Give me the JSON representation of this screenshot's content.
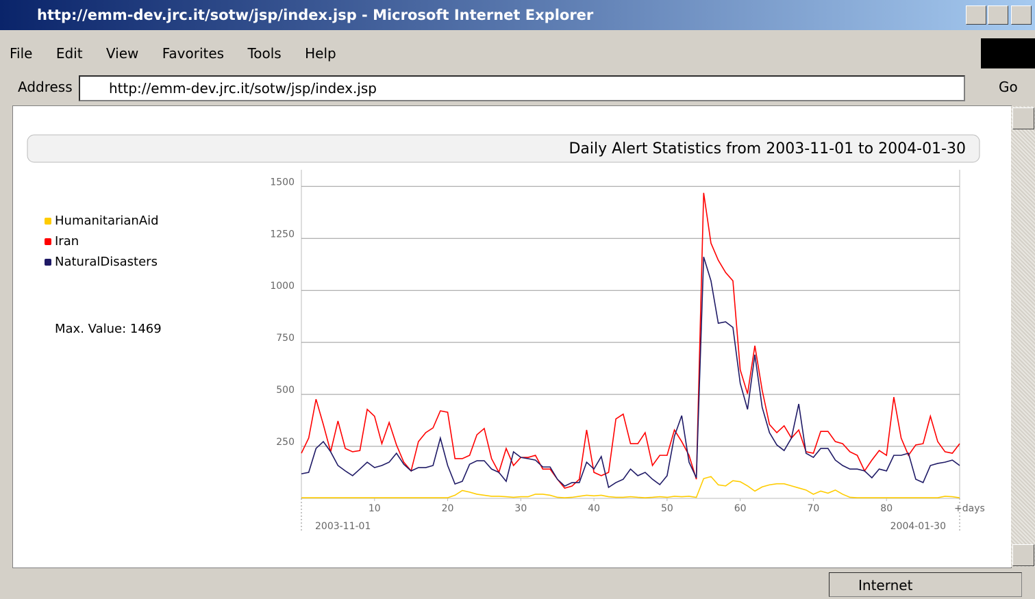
{
  "window": {
    "title": "http://emm-dev.jrc.it/sotw/jsp/index.jsp - Microsoft Internet Explorer",
    "menu": [
      "File",
      "Edit",
      "View",
      "Favorites",
      "Tools",
      "Help"
    ],
    "address_label": "Address",
    "url": "http://emm-dev.jrc.it/sotw/jsp/index.jsp",
    "go": "Go",
    "status_zone": "Internet"
  },
  "max_value_text": "Max. Value: 1469",
  "chart_data": {
    "type": "line",
    "title": "Daily Alert Statistics from 2003-11-01 to 2004-01-30",
    "x_label": "+days",
    "annotations": [
      "2003-11-01",
      "2004-01-30"
    ],
    "x": [
      0,
      1,
      2,
      3,
      4,
      5,
      6,
      7,
      8,
      9,
      10,
      11,
      12,
      13,
      14,
      15,
      16,
      17,
      18,
      19,
      20,
      21,
      22,
      23,
      24,
      25,
      26,
      27,
      28,
      29,
      30,
      31,
      32,
      33,
      34,
      35,
      36,
      37,
      38,
      39,
      40,
      41,
      42,
      43,
      44,
      45,
      46,
      47,
      48,
      49,
      50,
      51,
      52,
      53,
      54,
      55,
      56,
      57,
      58,
      59,
      60,
      61,
      62,
      63,
      64,
      65,
      66,
      67,
      68,
      69,
      70,
      71,
      72,
      73,
      74,
      75,
      76,
      77,
      78,
      79,
      80,
      81,
      82,
      83,
      84,
      85,
      86,
      87,
      88,
      89,
      90
    ],
    "series": [
      {
        "name": "HumanitarianAid",
        "color": "#ffcc00",
        "values": [
          3,
          3,
          3,
          3,
          3,
          3,
          3,
          3,
          3,
          3,
          3,
          3,
          3,
          3,
          3,
          3,
          3,
          3,
          3,
          3,
          3,
          15,
          38,
          30,
          20,
          15,
          10,
          10,
          8,
          5,
          8,
          8,
          20,
          20,
          15,
          5,
          3,
          5,
          10,
          15,
          12,
          15,
          8,
          5,
          5,
          8,
          5,
          3,
          5,
          8,
          5,
          10,
          8,
          10,
          5,
          95,
          105,
          65,
          60,
          85,
          80,
          60,
          35,
          55,
          65,
          70,
          70,
          60,
          50,
          40,
          20,
          35,
          25,
          40,
          20,
          5,
          3,
          3,
          3,
          3,
          3,
          3,
          3,
          3,
          3,
          3,
          3,
          3,
          10,
          8,
          3
        ]
      },
      {
        "name": "Iran",
        "color": "#ff0000",
        "values": [
          217,
          290,
          477,
          355,
          224,
          372,
          240,
          224,
          230,
          428,
          395,
          263,
          365,
          257,
          174,
          132,
          273,
          316,
          339,
          421,
          414,
          191,
          191,
          207,
          306,
          336,
          191,
          125,
          240,
          158,
          197,
          197,
          207,
          141,
          141,
          92,
          49,
          59,
          92,
          329,
          125,
          109,
          125,
          382,
          405,
          263,
          263,
          316,
          158,
          207,
          207,
          329,
          273,
          207,
          92,
          1469,
          1227,
          1145,
          1086,
          1046,
          618,
          503,
          734,
          520,
          355,
          316,
          349,
          290,
          329,
          224,
          217,
          322,
          322,
          273,
          263,
          224,
          207,
          132,
          184,
          230,
          207,
          487,
          290,
          207,
          257,
          263,
          395,
          273,
          224,
          217,
          263
        ]
      },
      {
        "name": "NaturalDisasters",
        "color": "#1f1a66",
        "values": [
          118,
          125,
          240,
          273,
          224,
          158,
          132,
          109,
          141,
          174,
          148,
          158,
          174,
          217,
          164,
          132,
          148,
          148,
          158,
          290,
          158,
          69,
          82,
          164,
          181,
          181,
          141,
          125,
          82,
          224,
          197,
          191,
          184,
          151,
          151,
          92,
          59,
          76,
          76,
          174,
          141,
          201,
          53,
          76,
          92,
          141,
          109,
          125,
          92,
          66,
          109,
          299,
          398,
          174,
          99,
          1161,
          1046,
          842,
          849,
          822,
          553,
          428,
          691,
          438,
          316,
          257,
          230,
          290,
          454,
          217,
          197,
          240,
          240,
          184,
          158,
          141,
          141,
          132,
          99,
          141,
          132,
          207,
          207,
          217,
          92,
          76,
          158,
          168,
          174,
          184,
          158
        ]
      }
    ],
    "xlim": [
      0,
      90
    ],
    "xticks": [
      10,
      20,
      30,
      40,
      50,
      60,
      70,
      80
    ],
    "ylim": [
      0,
      1580
    ],
    "yticks": [
      250,
      500,
      750,
      1000,
      1250,
      1500
    ],
    "grid": true
  }
}
